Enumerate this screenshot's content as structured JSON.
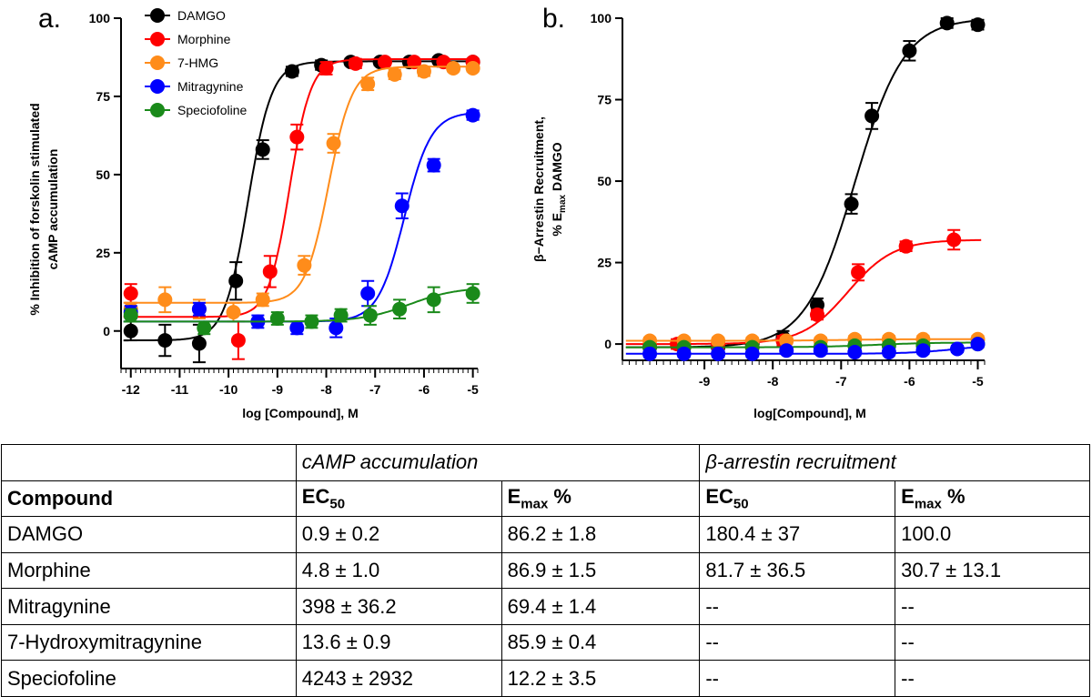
{
  "panel_a_letter": "a.",
  "panel_b_letter": "b.",
  "table": {
    "groups": [
      "cAMP accumulation",
      "β-arrestin recruitment"
    ],
    "headers": {
      "compound": "Compound",
      "ec50_main": "EC",
      "ec50_sub": "50",
      "emax_main": "E",
      "emax_sub": "max",
      "emax_suffix": " %"
    },
    "rows": [
      [
        "DAMGO",
        "0.9 ± 0.2",
        "86.2 ± 1.8",
        "180.4 ± 37",
        "100.0"
      ],
      [
        "Morphine",
        "4.8 ± 1.0",
        "86.9 ± 1.5",
        "81.7 ± 36.5",
        "30.7 ± 13.1"
      ],
      [
        "Mitragynine",
        "398 ± 36.2",
        "69.4 ± 1.4",
        "--",
        "--"
      ],
      [
        "7-Hydroxymitragynine",
        "13.6 ± 0.9",
        "85.9 ± 0.4",
        "--",
        "--"
      ],
      [
        "Speciofoline",
        "4243 ± 2932",
        "12.2 ± 3.5",
        "--",
        "--"
      ]
    ]
  },
  "chart_data": [
    {
      "type": "scatter",
      "xlabel": "log [Compound], M",
      "ylabel_line1": "% Inhibition of forskolin stimulated",
      "ylabel_line2": "cAMP accumulation",
      "xlim": [
        -12.2,
        -4.9
      ],
      "ylim": [
        -12,
        100
      ],
      "xticks": [
        -12,
        -11,
        -10,
        -9,
        -8,
        -7,
        -6,
        -5
      ],
      "yticks": [
        0,
        25,
        50,
        75,
        100
      ],
      "legend_position": "top-left",
      "series": [
        {
          "name": "DAMGO",
          "color": "#000000",
          "x": [
            -12,
            -11.3,
            -10.6,
            -9.85,
            -9.3,
            -8.7,
            -8.1,
            -7.5,
            -6.9,
            -6.3,
            -5.7,
            -5
          ],
          "y": [
            0,
            -3,
            -4,
            16,
            58,
            83,
            85,
            86,
            86,
            86,
            86.5,
            86
          ],
          "err": [
            3,
            5,
            6,
            6,
            3,
            1.5,
            1.5,
            1,
            1,
            1,
            1,
            1
          ],
          "curve": {
            "bottom": -3,
            "top": 86.2,
            "logec50": -9.6,
            "hill": 1.8
          }
        },
        {
          "name": "Morphine",
          "color": "#ff0000",
          "x": [
            -12,
            -9.8,
            -9.15,
            -8.6,
            -8,
            -7.4,
            -6.8,
            -6.2,
            -5.6,
            -5
          ],
          "y": [
            12,
            -3,
            19,
            62,
            84,
            85.5,
            86,
            86,
            86,
            86
          ],
          "err": [
            3,
            6,
            5,
            4,
            2,
            1.5,
            1,
            1,
            1,
            1
          ],
          "curve": {
            "bottom": 4.5,
            "top": 86.9,
            "logec50": -8.75,
            "hill": 2
          }
        },
        {
          "name": "7-HMG",
          "color": "#ff8c1a",
          "x": [
            -12,
            -11.3,
            -10.6,
            -9.9,
            -9.3,
            -8.45,
            -7.85,
            -7.15,
            -6.6,
            -6,
            -5.4,
            -5
          ],
          "y": [
            7,
            10,
            7,
            6,
            10,
            21,
            60,
            79,
            82,
            83,
            84,
            84
          ],
          "err": [
            2,
            4,
            3,
            3,
            2,
            3,
            3,
            2,
            1.5,
            1.5,
            1,
            1
          ],
          "curve": {
            "bottom": 9,
            "top": 84.5,
            "logec50": -7.95,
            "hill": 1.8
          }
        },
        {
          "name": "Mitragynine",
          "color": "#0000ff",
          "x": [
            -12,
            -10.6,
            -9.4,
            -8.6,
            -7.8,
            -7.15,
            -6.45,
            -5.8,
            -5
          ],
          "y": [
            6,
            7,
            3,
            1,
            1,
            12,
            40,
            53,
            69
          ],
          "err": [
            2,
            2,
            2,
            2,
            3,
            4,
            4,
            2,
            1.5
          ],
          "curve": {
            "bottom": 3,
            "top": 70,
            "logec50": -6.4,
            "hill": 1.6
          }
        },
        {
          "name": "Speciofoline",
          "color": "#1a8a1a",
          "x": [
            -12,
            -10.5,
            -9,
            -8.3,
            -7.7,
            -7.1,
            -6.5,
            -5.8,
            -5
          ],
          "y": [
            5,
            1,
            4,
            3,
            5,
            5,
            7,
            10,
            12
          ],
          "err": [
            2,
            2,
            2,
            2,
            2,
            3,
            3,
            4,
            3
          ],
          "curve": {
            "bottom": 3,
            "top": 14,
            "logec50": -6.3,
            "hill": 0.9
          }
        }
      ]
    },
    {
      "type": "scatter",
      "xlabel": "log[Compound], M",
      "ylabel_line1": "β−Arrestin Recruitment,",
      "ylabel_line2_main": "% E",
      "ylabel_line2_sub": "max",
      "ylabel_line2_tail": " DAMGO",
      "xlim": [
        -10.2,
        -4.9
      ],
      "ylim": [
        -5,
        100
      ],
      "xticks": [
        -9,
        -8,
        -7,
        -6,
        -5
      ],
      "yticks": [
        0,
        25,
        50,
        75,
        100
      ],
      "series": [
        {
          "name": "DAMGO",
          "color": "#000000",
          "x": [
            -9.8,
            -9.3,
            -8.8,
            -8.3,
            -7.85,
            -7.35,
            -6.85,
            -6.55,
            -6,
            -5.45,
            -5
          ],
          "y": [
            -1,
            -1,
            -1,
            0,
            2,
            12,
            43,
            70,
            90,
            98.5,
            98
          ],
          "err": [
            1.5,
            1.5,
            1.5,
            1.5,
            2,
            2,
            3,
            4,
            3,
            1.5,
            1.5
          ],
          "curve": {
            "bottom": -1,
            "top": 100,
            "logec50": -6.8,
            "hill": 1.2
          }
        },
        {
          "name": "Morphine",
          "color": "#ff0000",
          "x": [
            -9.8,
            -9.4,
            -8.8,
            -8.3,
            -7.85,
            -7.35,
            -6.75,
            -6.05,
            -5.35
          ],
          "y": [
            -1,
            0,
            0,
            -1,
            1,
            9,
            22,
            30,
            32
          ],
          "err": [
            1.5,
            1.5,
            1.5,
            1.5,
            1.5,
            1.5,
            2.5,
            1.5,
            3
          ],
          "curve": {
            "bottom": 0,
            "top": 32,
            "logec50": -6.9,
            "hill": 1.3
          }
        },
        {
          "name": "7-HMG",
          "color": "#ff8c1a",
          "x": [
            -9.8,
            -9.3,
            -8.8,
            -8.3,
            -7.8,
            -7.3,
            -6.8,
            -6.3,
            -5.8,
            -5
          ],
          "y": [
            1,
            1,
            1,
            1,
            1,
            1,
            1.5,
            1.5,
            1.5,
            1.5
          ],
          "err": [
            1,
            1,
            1,
            1,
            1,
            1,
            1,
            1,
            1,
            1
          ],
          "curve": {
            "bottom": 1,
            "top": 1.5,
            "logec50": -7,
            "hill": 1
          }
        },
        {
          "name": "Speciofoline",
          "color": "#1a8a1a",
          "x": [
            -9.8,
            -9.3,
            -8.3,
            -7.3,
            -6.8,
            -6.3,
            -5.8,
            -5
          ],
          "y": [
            -1,
            -1,
            -1,
            -1,
            -0.5,
            -0.5,
            -0.5,
            0
          ],
          "err": [
            1,
            1,
            1,
            1,
            1,
            1,
            1,
            1
          ],
          "curve": {
            "bottom": -1,
            "top": 0.5,
            "logec50": -6.5,
            "hill": 1
          }
        },
        {
          "name": "Mitragynine",
          "color": "#0000ff",
          "x": [
            -9.8,
            -9.3,
            -8.8,
            -8.3,
            -7.8,
            -7.3,
            -6.8,
            -6.3,
            -5.8,
            -5.3,
            -5
          ],
          "y": [
            -3,
            -3,
            -3,
            -3,
            -2,
            -2,
            -2.5,
            -2.5,
            -2,
            -1.5,
            0
          ],
          "err": [
            1,
            1,
            1,
            1,
            1,
            1,
            1,
            1,
            1,
            1,
            1
          ],
          "curve": {
            "bottom": -3,
            "top": 0,
            "logec50": -5.3,
            "hill": 1.2
          }
        }
      ]
    }
  ]
}
